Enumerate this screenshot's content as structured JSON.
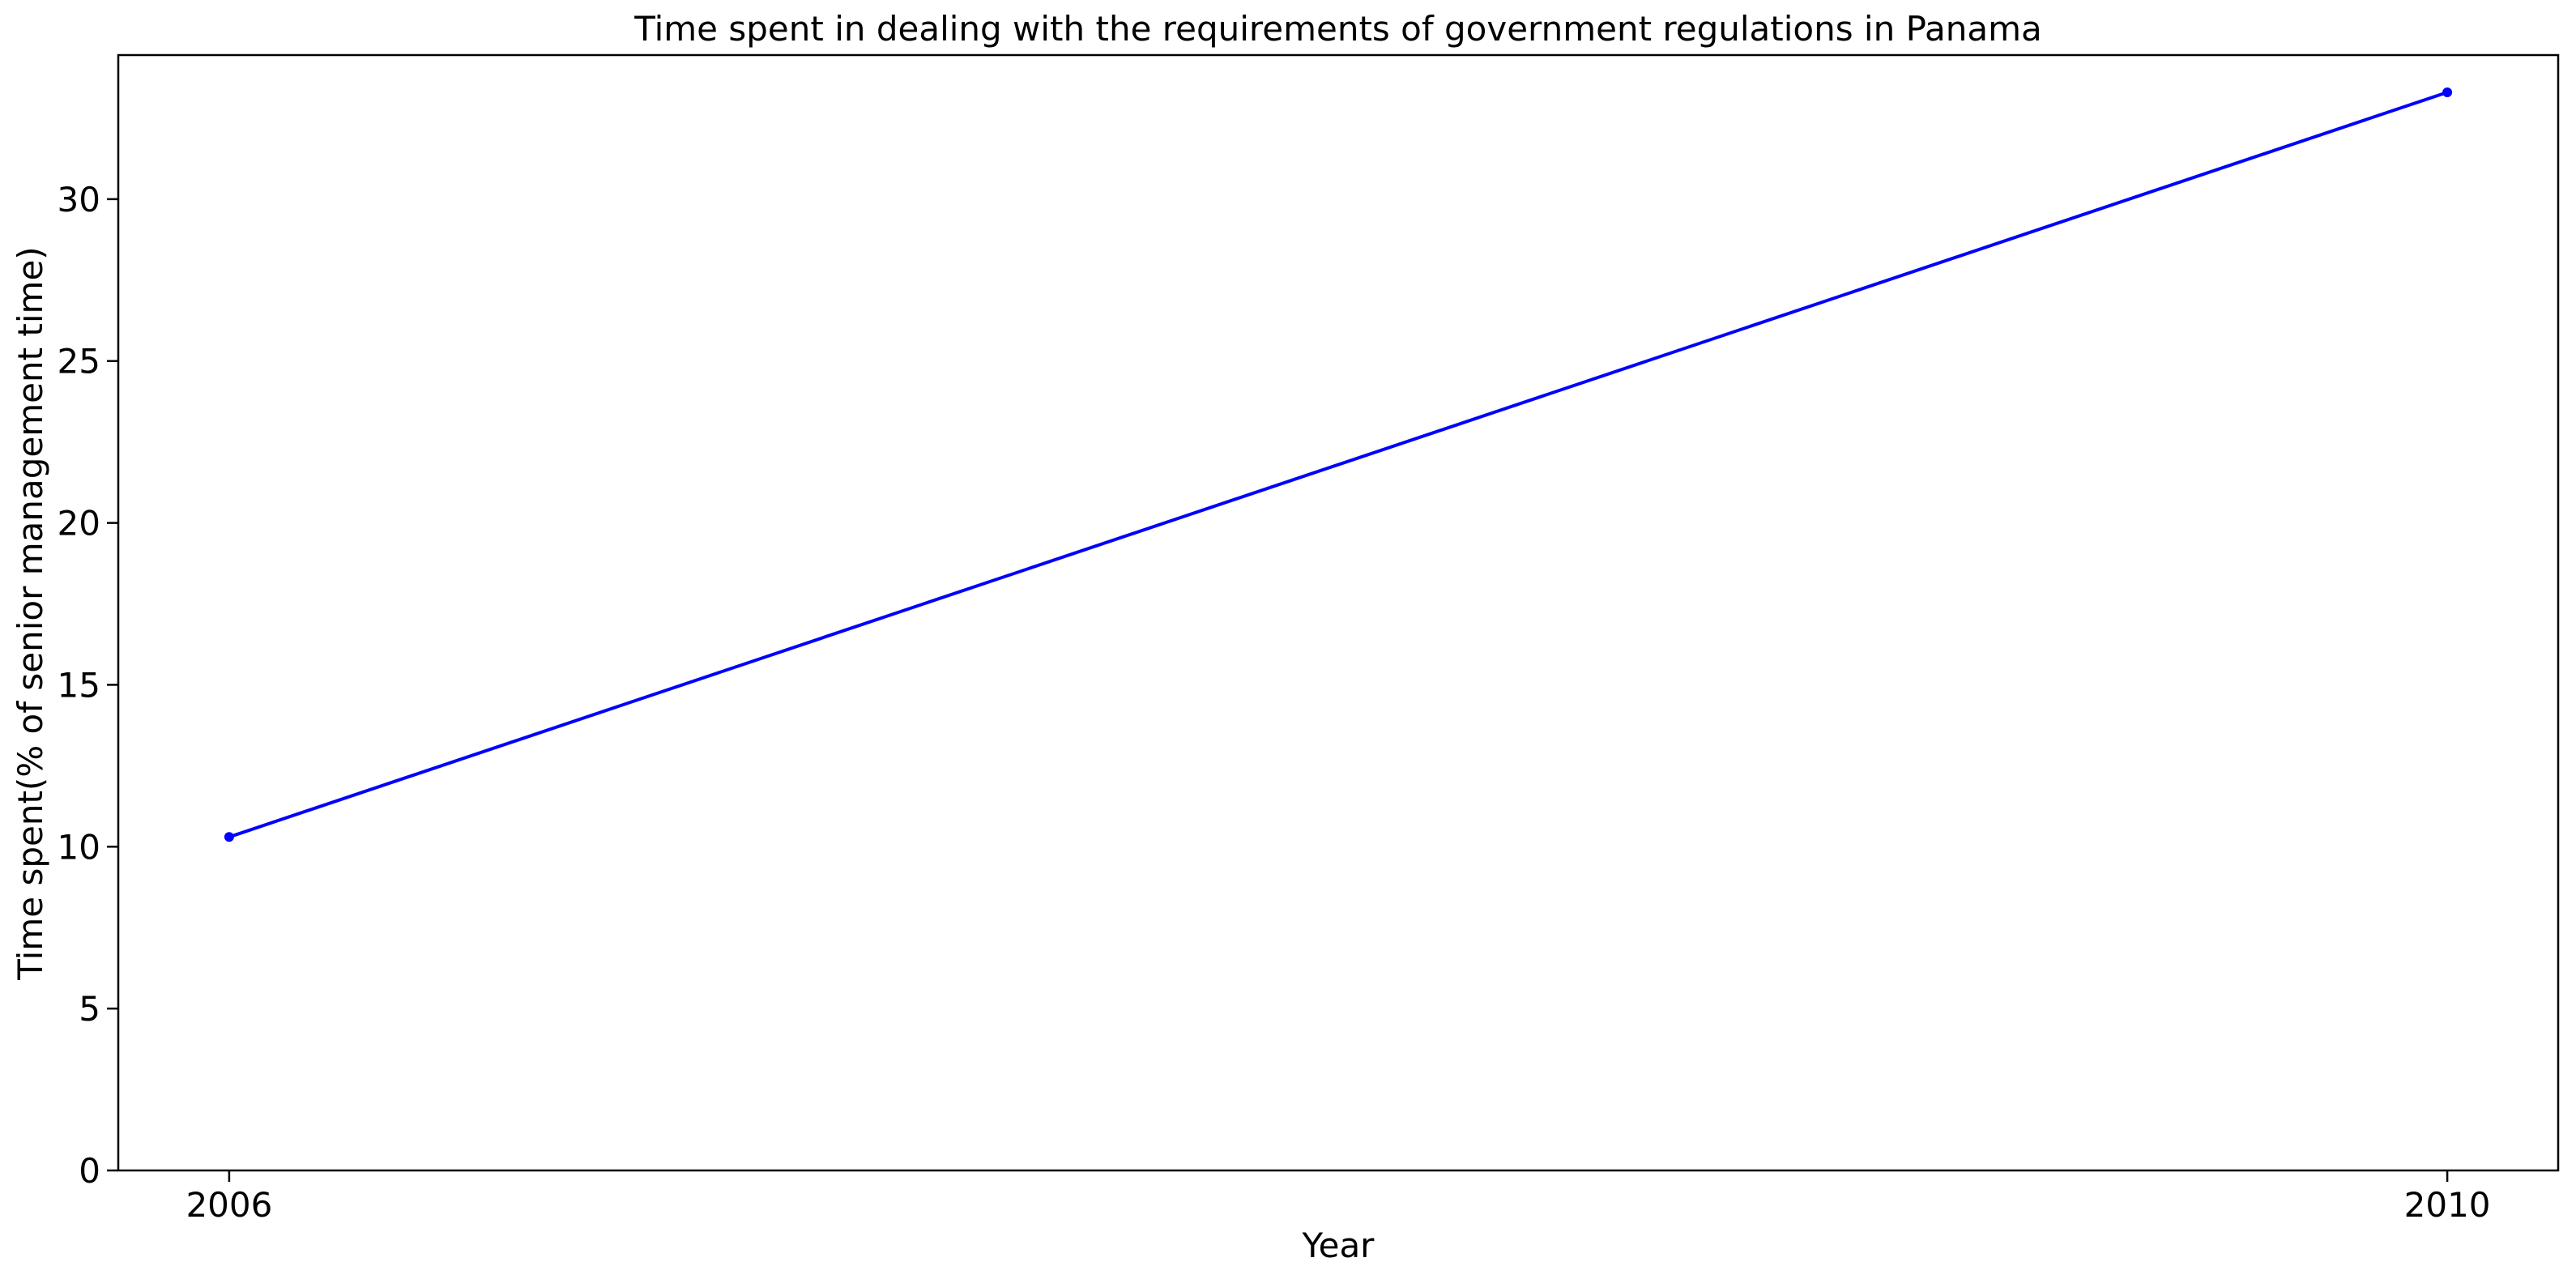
{
  "chart_data": {
    "type": "line",
    "title": "Time spent in dealing with the requirements of government regulations in Panama",
    "xlabel": "Year",
    "ylabel": "Time spent(% of senior management time)",
    "x": [
      2006,
      2010
    ],
    "x_tick_labels": [
      "2006",
      "2010"
    ],
    "series": [
      {
        "values": [
          10.3,
          33.3
        ],
        "color": "#0000ff",
        "marker": "dot"
      }
    ],
    "ylim": [
      0,
      34.45
    ],
    "y_ticks": [
      0,
      5,
      10,
      15,
      20,
      25,
      30
    ],
    "y_tick_labels": [
      "0",
      "5",
      "10",
      "15",
      "20",
      "25",
      "30"
    ],
    "grid": false,
    "legend": "none"
  }
}
